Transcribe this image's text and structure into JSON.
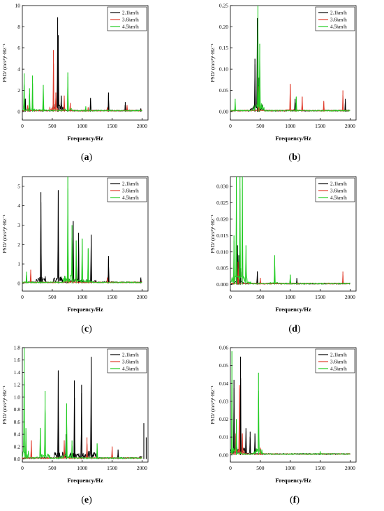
{
  "chart_data": [
    {
      "type": "line",
      "panel": "a",
      "ylabel": "PSD/ (m/s²)²·Hz⁻¹",
      "xlabel": "Frequency/Hz",
      "xlim": [
        0,
        2100
      ],
      "ylim": [
        -0.8,
        10
      ],
      "xticks": [
        0,
        500,
        1000,
        1500,
        2000
      ],
      "yticks": [
        0,
        2,
        4,
        6,
        8,
        10
      ],
      "ytick_labels": [
        "0",
        "2",
        "4",
        "6",
        "8",
        "10"
      ],
      "legend_position": "top-right",
      "series": [
        {
          "name": "2.1km/h",
          "color": "#000000",
          "peaks": [
            [
              50,
              1.2
            ],
            [
              120,
              0.8
            ],
            [
              590,
              8.9
            ],
            [
              600,
              7.2
            ],
            [
              650,
              1.5
            ],
            [
              1140,
              1.3
            ],
            [
              1440,
              1.8
            ],
            [
              1720,
              0.9
            ],
            [
              1980,
              0.3
            ]
          ]
        },
        {
          "name": "3.6km/h",
          "color": "#e03c2c",
          "peaks": [
            [
              90,
              0.6
            ],
            [
              520,
              5.8
            ],
            [
              560,
              1.8
            ],
            [
              700,
              1.5
            ],
            [
              800,
              0.8
            ],
            [
              1100,
              0.4
            ],
            [
              1420,
              0.4
            ],
            [
              1750,
              0.6
            ]
          ]
        },
        {
          "name": "4.5km/h",
          "color": "#22cc22",
          "peaks": [
            [
              30,
              3.6
            ],
            [
              120,
              2.2
            ],
            [
              170,
              3.4
            ],
            [
              350,
              2.5
            ],
            [
              760,
              3.7
            ],
            [
              1060,
              0.5
            ]
          ]
        }
      ]
    },
    {
      "type": "line",
      "panel": "b",
      "ylabel": "PSD/ (m/s²)²·Hz⁻¹",
      "xlabel": "Frequency/Hz",
      "xlim": [
        0,
        2100
      ],
      "ylim": [
        -0.02,
        0.25
      ],
      "xticks": [
        0,
        500,
        1000,
        1500,
        2000
      ],
      "yticks": [
        0,
        0.05,
        0.1,
        0.15,
        0.2,
        0.25
      ],
      "ytick_labels": [
        "0.00",
        "0.05",
        "0.10",
        "0.15",
        "0.20",
        "0.25"
      ],
      "legend_position": "top-right",
      "series": [
        {
          "name": "2.1km/h",
          "color": "#000000",
          "peaks": [
            [
              410,
              0.125
            ],
            [
              450,
              0.22
            ],
            [
              480,
              0.08
            ],
            [
              1080,
              0.03
            ],
            [
              1920,
              0.03
            ]
          ]
        },
        {
          "name": "3.6km/h",
          "color": "#e03c2c",
          "peaks": [
            [
              470,
              0.06
            ],
            [
              1000,
              0.065
            ],
            [
              1200,
              0.035
            ],
            [
              1560,
              0.025
            ],
            [
              1880,
              0.05
            ]
          ]
        },
        {
          "name": "4.5km/h",
          "color": "#22cc22",
          "peaks": [
            [
              80,
              0.03
            ],
            [
              460,
              0.25
            ],
            [
              490,
              0.16
            ],
            [
              1100,
              0.035
            ]
          ]
        }
      ]
    },
    {
      "type": "line",
      "panel": "c",
      "ylabel": "PSD/ (m/s²)²·Hz⁻¹",
      "xlabel": "Frequency/Hz",
      "xlim": [
        0,
        2100
      ],
      "ylim": [
        -0.4,
        5.5
      ],
      "xticks": [
        0,
        500,
        1000,
        1500,
        2000
      ],
      "yticks": [
        0,
        1,
        2,
        3,
        4,
        5
      ],
      "ytick_labels": [
        "0",
        "1",
        "2",
        "3",
        "4",
        "5"
      ],
      "legend_position": "top-right",
      "series": [
        {
          "name": "2.1km/h",
          "color": "#000000",
          "peaks": [
            [
              310,
              4.7
            ],
            [
              600,
              4.8
            ],
            [
              850,
              3.2
            ],
            [
              940,
              2.6
            ],
            [
              1150,
              2.5
            ],
            [
              1440,
              1.4
            ],
            [
              1980,
              0.3
            ]
          ]
        },
        {
          "name": "3.6km/h",
          "color": "#e03c2c",
          "peaks": [
            [
              140,
              0.7
            ],
            [
              760,
              1.4
            ],
            [
              900,
              0.8
            ],
            [
              1420,
              0.3
            ]
          ]
        },
        {
          "name": "4.5km/h",
          "color": "#22cc22",
          "peaks": [
            [
              70,
              0.6
            ],
            [
              760,
              5.5
            ],
            [
              830,
              3.0
            ],
            [
              900,
              2.2
            ],
            [
              1000,
              2.3
            ],
            [
              1100,
              1.8
            ]
          ]
        }
      ]
    },
    {
      "type": "line",
      "panel": "d",
      "ylabel": "PSD/ (m/s²)²·Hz⁻¹",
      "xlabel": "Frequency/Hz",
      "xlim": [
        0,
        2100
      ],
      "ylim": [
        -0.002,
        0.033
      ],
      "xticks": [
        0,
        500,
        1000,
        1500,
        2000
      ],
      "yticks": [
        0,
        0.005,
        0.01,
        0.015,
        0.02,
        0.025,
        0.03
      ],
      "ytick_labels": [
        "0.000",
        "0.005",
        "0.010",
        "0.015",
        "0.020",
        "0.025",
        "0.030"
      ],
      "legend_position": "top-right",
      "series": [
        {
          "name": "2.1km/h",
          "color": "#000000",
          "peaks": [
            [
              120,
              0.012
            ],
            [
              140,
              0.009
            ],
            [
              170,
              0.005
            ],
            [
              450,
              0.004
            ],
            [
              1110,
              0.002
            ]
          ]
        },
        {
          "name": "3.6km/h",
          "color": "#e03c2c",
          "peaks": [
            [
              130,
              0.007
            ],
            [
              500,
              0.002
            ],
            [
              1000,
              0.002
            ],
            [
              1880,
              0.004
            ]
          ]
        },
        {
          "name": "4.5km/h",
          "color": "#22cc22",
          "peaks": [
            [
              60,
              0.015
            ],
            [
              100,
              0.033
            ],
            [
              160,
              0.033
            ],
            [
              200,
              0.033
            ],
            [
              260,
              0.012
            ],
            [
              740,
              0.009
            ],
            [
              1000,
              0.003
            ]
          ]
        }
      ]
    },
    {
      "type": "line",
      "panel": "e",
      "ylabel": "PSD/ (m/s²)²·Hz⁻¹",
      "xlabel": "Frequency/Hz",
      "xlim": [
        0,
        2100
      ],
      "ylim": [
        -0.05,
        1.8
      ],
      "xticks": [
        0,
        500,
        1000,
        1500,
        2000
      ],
      "yticks": [
        0,
        0.2,
        0.4,
        0.6,
        0.8,
        1.0,
        1.2,
        1.4,
        1.6,
        1.8
      ],
      "ytick_labels": [
        "0.0",
        "0.2",
        "0.4",
        "0.6",
        "0.8",
        "1.0",
        "1.2",
        "1.4",
        "1.6",
        "1.8"
      ],
      "legend_position": "top-right",
      "series": [
        {
          "name": "2.1km/h",
          "color": "#000000",
          "peaks": [
            [
              600,
              1.43
            ],
            [
              730,
              0.4
            ],
            [
              870,
              1.27
            ],
            [
              990,
              1.2
            ],
            [
              1150,
              1.65
            ],
            [
              1600,
              0.15
            ],
            [
              2030,
              0.58
            ],
            [
              2070,
              0.35
            ]
          ]
        },
        {
          "name": "3.6km/h",
          "color": "#e03c2c",
          "peaks": [
            [
              150,
              0.3
            ],
            [
              700,
              0.3
            ],
            [
              1080,
              0.35
            ],
            [
              1500,
              0.2
            ]
          ]
        },
        {
          "name": "4.5km/h",
          "color": "#22cc22",
          "peaks": [
            [
              30,
              1.8
            ],
            [
              60,
              0.5
            ],
            [
              300,
              0.5
            ],
            [
              380,
              1.1
            ],
            [
              740,
              0.9
            ],
            [
              830,
              0.3
            ],
            [
              1250,
              0.25
            ]
          ]
        }
      ]
    },
    {
      "type": "line",
      "panel": "f",
      "ylabel": "PSD/ (m/s²)²·Hz⁻¹",
      "xlabel": "Frequency/Hz",
      "xlim": [
        0,
        2100
      ],
      "ylim": [
        -0.004,
        0.06
      ],
      "xticks": [
        0,
        500,
        1000,
        1500,
        2000
      ],
      "yticks": [
        0,
        0.01,
        0.02,
        0.03,
        0.04,
        0.05,
        0.06
      ],
      "ytick_labels": [
        "0.00",
        "0.01",
        "0.02",
        "0.03",
        "0.04",
        "0.05",
        "0.06"
      ],
      "legend_position": "top-right",
      "series": [
        {
          "name": "2.1km/h",
          "color": "#000000",
          "peaks": [
            [
              60,
              0.042
            ],
            [
              170,
              0.055
            ],
            [
              260,
              0.015
            ],
            [
              330,
              0.013
            ],
            [
              410,
              0.012
            ]
          ]
        },
        {
          "name": "3.6km/h",
          "color": "#e03c2c",
          "peaks": [
            [
              90,
              0.012
            ],
            [
              150,
              0.039
            ],
            [
              200,
              0.012
            ],
            [
              500,
              0.004
            ]
          ]
        },
        {
          "name": "4.5km/h",
          "color": "#22cc22",
          "peaks": [
            [
              25,
              0.058
            ],
            [
              100,
              0.02
            ],
            [
              470,
              0.046
            ],
            [
              1500,
              0.002
            ]
          ]
        }
      ]
    }
  ]
}
